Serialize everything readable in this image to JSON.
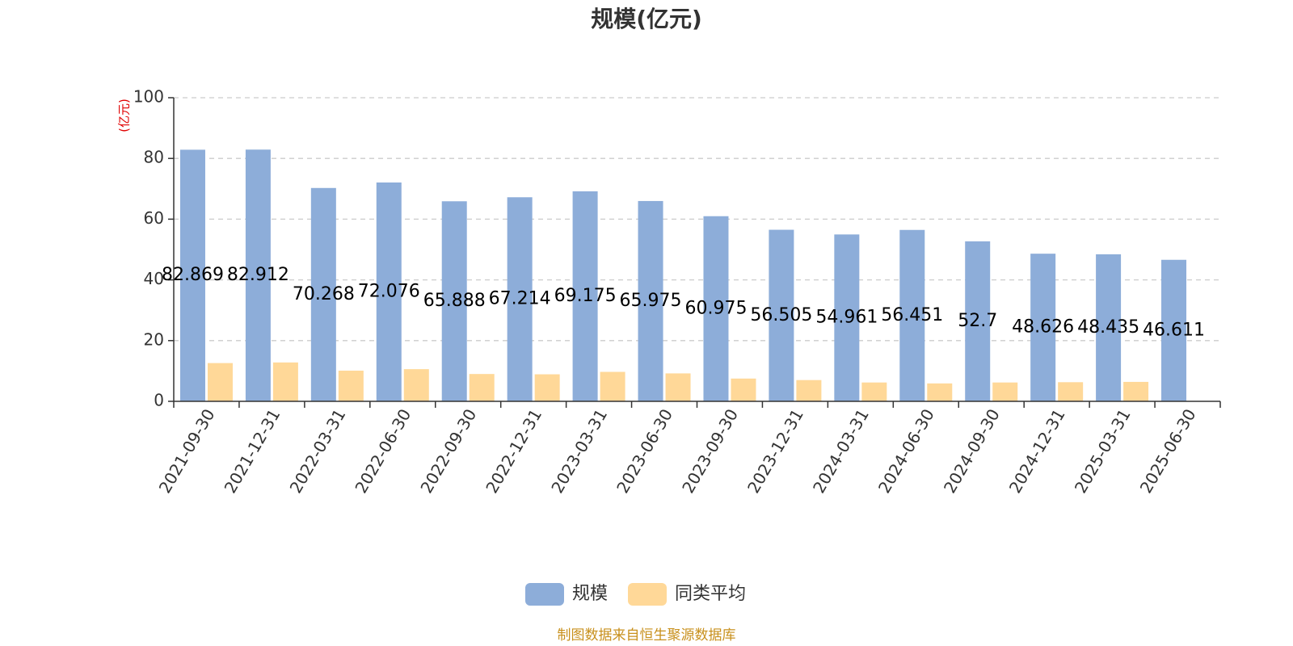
{
  "chart_data": {
    "type": "bar",
    "title": "规模(亿元)",
    "ylabel": "(亿元)",
    "ylim": [
      0,
      100
    ],
    "yticks": [
      0,
      20,
      40,
      60,
      80,
      100
    ],
    "grid": true,
    "legend_position": "bottom",
    "categories": [
      "2021-09-30",
      "2021-12-31",
      "2022-03-31",
      "2022-06-30",
      "2022-09-30",
      "2022-12-31",
      "2023-03-31",
      "2023-06-30",
      "2023-09-30",
      "2023-12-31",
      "2024-03-31",
      "2024-06-30",
      "2024-09-30",
      "2024-12-31",
      "2025-03-31",
      "2025-06-30"
    ],
    "series": [
      {
        "name": "规模",
        "color": "#8dadd9",
        "values": [
          82.869,
          82.912,
          70.268,
          72.076,
          65.888,
          67.214,
          69.175,
          65.975,
          60.975,
          56.505,
          54.961,
          56.451,
          52.7,
          48.626,
          48.435,
          46.611
        ],
        "labels": [
          "82.869",
          "82.912",
          "70.268",
          "72.076",
          "65.888",
          "67.214",
          "69.175",
          "65.975",
          "60.975",
          "56.505",
          "54.961",
          "56.451",
          "52.7",
          "48.626",
          "48.435",
          "46.611"
        ]
      },
      {
        "name": "同类平均",
        "color": "#ffd898",
        "values": [
          12.6,
          12.8,
          10.1,
          10.6,
          9.0,
          8.9,
          9.7,
          9.2,
          7.5,
          7.0,
          6.2,
          5.9,
          6.2,
          6.3,
          6.4,
          null
        ]
      }
    ]
  },
  "footer": {
    "source_text": "制图数据来自恒生聚源数据库"
  }
}
